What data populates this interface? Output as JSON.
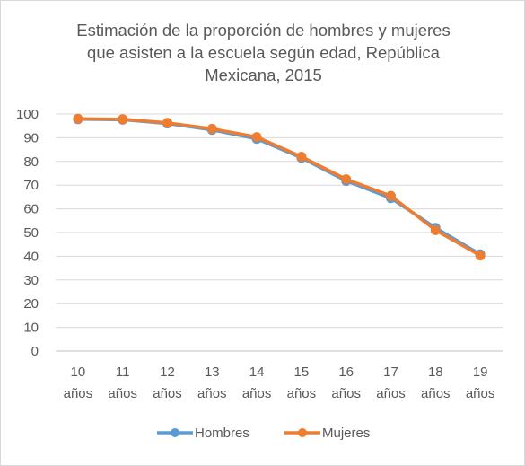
{
  "chart_data": {
    "type": "line",
    "title_lines": [
      "Estimación de la proporción de hombres y mujeres",
      "que asisten a la escuela según edad, República",
      "Mexicana, 2015"
    ],
    "categories": [
      [
        "10",
        "años"
      ],
      [
        "11",
        "años"
      ],
      [
        "12",
        "años"
      ],
      [
        "13",
        "años"
      ],
      [
        "14",
        "años"
      ],
      [
        "15",
        "años"
      ],
      [
        "16",
        "años"
      ],
      [
        "17",
        "años"
      ],
      [
        "18",
        "años"
      ],
      [
        "19",
        "años"
      ]
    ],
    "ylim": [
      0,
      100
    ],
    "yticks": [
      "0",
      "10",
      "20",
      "30",
      "40",
      "50",
      "60",
      "70",
      "80",
      "90",
      "100"
    ],
    "grid": true,
    "legend_position": "bottom",
    "series": [
      {
        "name": "Hombres",
        "color": "#5b9bd5",
        "values": [
          97.8,
          97.6,
          96.0,
          93.3,
          89.5,
          81.5,
          71.8,
          64.5,
          52.0,
          40.8
        ]
      },
      {
        "name": "Mujeres",
        "color": "#ed7d31",
        "values": [
          98.0,
          97.8,
          96.3,
          93.8,
          90.3,
          82.0,
          72.5,
          65.5,
          51.0,
          40.3
        ]
      }
    ]
  }
}
